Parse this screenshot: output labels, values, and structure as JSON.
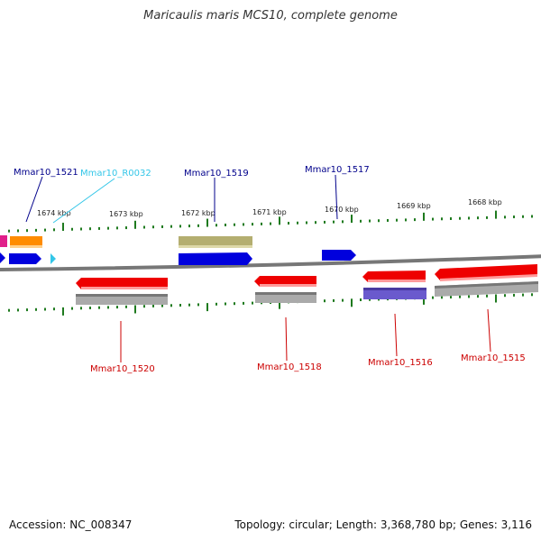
{
  "title": "Maricaulis maris MCS10, complete genome",
  "footer": {
    "accession": "Accession: NC_008347",
    "summary": "Topology: circular; Length: 3,368,780 bp; Genes: 3,116"
  },
  "colors": {
    "backbone": "#777777",
    "tick": "#1e7a1e",
    "gene_red": "#ee0000",
    "gene_gray": "#aaaaaa",
    "gene_blue": "#0000dd",
    "gene_olive": "#b4ae70",
    "gene_orange": "#ff8c00",
    "gene_magenta": "#e0208a",
    "gene_purple": "#6a5acd",
    "gene_cyan": "#33c6e8",
    "label_top": "#00008b",
    "label_bottom": "#cc0000",
    "label_rna": "#33c6e8"
  },
  "scale_labels": [
    "1674 kbp",
    "1673 kbp",
    "1672 kbp",
    "1671 kbp",
    "1670 kbp",
    "1669 kbp",
    "1668 kbp"
  ],
  "gene_labels": {
    "top": [
      "Mmar10_1521",
      "Mmar10_R0032",
      "Mmar10_1519",
      "Mmar10_1517"
    ],
    "bottom": [
      "Mmar10_1520",
      "Mmar10_1518",
      "Mmar10_1516",
      "Mmar10_1515"
    ]
  }
}
